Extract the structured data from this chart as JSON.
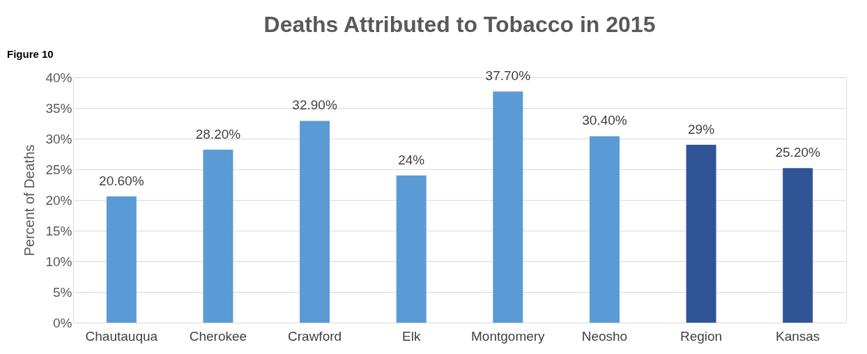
{
  "chart_data": {
    "type": "bar",
    "title": "Deaths Attributed to Tobacco in 2015",
    "ylabel": "Percent of Deaths",
    "annotations": [
      "Figure 10"
    ],
    "categories": [
      "Chautauqua",
      "Cherokee",
      "Crawford",
      "Elk",
      "Montgomery",
      "Neosho",
      "Region",
      "Kansas"
    ],
    "values": [
      20.6,
      28.2,
      32.9,
      24,
      37.7,
      30.4,
      29,
      25.2
    ],
    "value_labels": [
      "20.60%",
      "28.20%",
      "32.90%",
      "24%",
      "37.70%",
      "30.40%",
      "29%",
      "25.20%"
    ],
    "colors": [
      "#5b9bd5",
      "#5b9bd5",
      "#5b9bd5",
      "#5b9bd5",
      "#5b9bd5",
      "#5b9bd5",
      "#2f5597",
      "#2f5597"
    ],
    "ylim": [
      0,
      40
    ],
    "yticks": [
      {
        "value": 0,
        "label": "0%"
      },
      {
        "value": 5,
        "label": "5%"
      },
      {
        "value": 10,
        "label": "10%"
      },
      {
        "value": 15,
        "label": "15%"
      },
      {
        "value": 20,
        "label": "20%"
      },
      {
        "value": 25,
        "label": "25%"
      },
      {
        "value": 30,
        "label": "30%"
      },
      {
        "value": 35,
        "label": "35%"
      },
      {
        "value": 40,
        "label": "40%"
      }
    ],
    "grid": "y"
  }
}
